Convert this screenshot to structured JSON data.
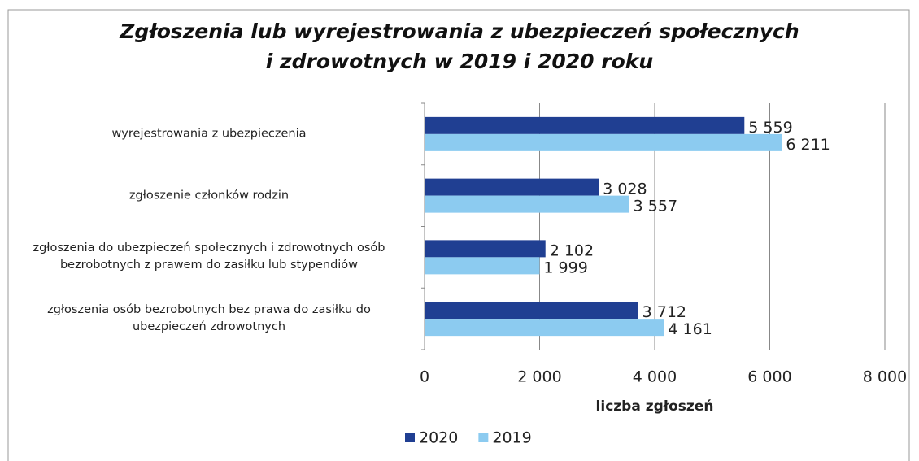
{
  "chart_data": {
    "type": "bar",
    "orientation": "horizontal",
    "title": "Zgłoszenia lub wyrejestrowania z ubezpieczeń społecznych\ni zdrowotnych w 2019 i 2020 roku",
    "categories": [
      "wyrejestrowania z ubezpieczenia",
      "zgłoszenie członków rodzin",
      "zgłoszenia do ubezpieczeń społecznych i zdrowotnych osób\nbezrobotnych z prawem do zasiłku lub stypendiów",
      "zgłoszenia osób bezrobotnych bez prawa do zasiłku do\nubezpieczeń zdrowotnych"
    ],
    "series": [
      {
        "name": "2020",
        "color": "#203f92",
        "values": [
          5559,
          3028,
          2102,
          3712
        ],
        "value_labels": [
          "5 559",
          "3 028",
          "2 102",
          "3 712"
        ]
      },
      {
        "name": "2019",
        "color": "#8ccbf0",
        "values": [
          6211,
          3557,
          1999,
          4161
        ],
        "value_labels": [
          "6 211",
          "3 557",
          "1 999",
          "4 161"
        ]
      }
    ],
    "xlabel": "liczba zgłoszeń",
    "xlim": [
      0,
      8000
    ],
    "xticks": [
      0,
      {
        "value": 2000,
        "label": "2 000"
      },
      {
        "value": 4000,
        "label": "4 000"
      },
      {
        "value": 6000,
        "label": "6 000"
      },
      {
        "value": 8000,
        "label": "8 000"
      }
    ],
    "grid": true,
    "legend": "bottom"
  }
}
